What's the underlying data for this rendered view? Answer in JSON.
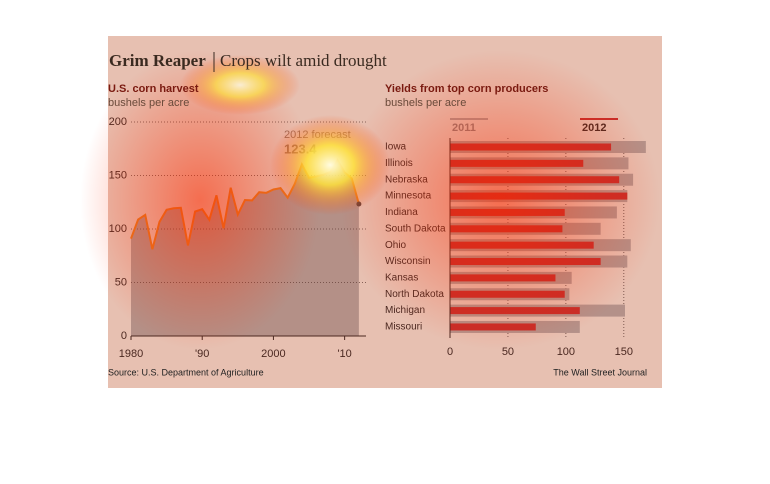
{
  "title": "Grim Reaper",
  "subtitle": "Crops wilt amid drought",
  "source": "Source: U.S. Department of Agriculture",
  "credit": "The Wall Street Journal",
  "chart_data": [
    {
      "type": "area",
      "title": "U.S. corn harvest",
      "subtitle": "bushels per acre",
      "annotation": "2012 forecast",
      "x": [
        1980,
        1981,
        1982,
        1983,
        1984,
        1985,
        1986,
        1987,
        1988,
        1989,
        1990,
        1991,
        1992,
        1993,
        1994,
        1995,
        1996,
        1997,
        1998,
        1999,
        2000,
        2001,
        2002,
        2003,
        2004,
        2005,
        2006,
        2007,
        2008,
        2009,
        2010,
        2011,
        2012
      ],
      "values": [
        91.0,
        108.9,
        113.2,
        81.1,
        106.7,
        118.0,
        119.4,
        119.8,
        84.6,
        116.3,
        118.5,
        108.6,
        131.5,
        100.7,
        138.6,
        113.5,
        127.1,
        126.7,
        134.4,
        133.8,
        136.9,
        138.2,
        129.3,
        142.2,
        160.3,
        147.9,
        149.1,
        150.7,
        153.3,
        164.4,
        152.8,
        147.2,
        123.4
      ],
      "color": "#e8891e",
      "fill_color": "#9c9c9c",
      "xlim": [
        1980,
        2013
      ],
      "xticks": [
        1980,
        {
          "value": 1990,
          "label": "'90"
        },
        2000,
        {
          "value": 2010,
          "label": "'10"
        }
      ],
      "ylim": [
        0,
        200
      ],
      "yticks": [
        0,
        50,
        100,
        150,
        200
      ],
      "grid": true
    },
    {
      "type": "bar",
      "orientation": "horizontal",
      "title": "Yields from top corn producers",
      "subtitle": "bushels per acre",
      "categories": [
        "Iowa",
        "Illinois",
        "Nebraska",
        "Minnesota",
        "Indiana",
        "South Dakota",
        "Ohio",
        "Wisconsin",
        "Kansas",
        "North Dakota",
        "Michigan",
        "Missouri"
      ],
      "series": [
        {
          "name": "2011",
          "color": "#a8a8a8",
          "values": [
            169,
            154,
            158,
            153,
            144,
            130,
            156,
            153,
            105,
            103,
            151,
            112
          ]
        },
        {
          "name": "2012",
          "color": "#c0282d",
          "values": [
            139,
            115,
            146,
            153,
            99,
            97,
            124,
            130,
            91,
            99,
            112,
            74
          ]
        }
      ],
      "xlim": [
        0,
        170
      ],
      "xticks": [
        0,
        50,
        100,
        150
      ],
      "grid": true
    }
  ]
}
